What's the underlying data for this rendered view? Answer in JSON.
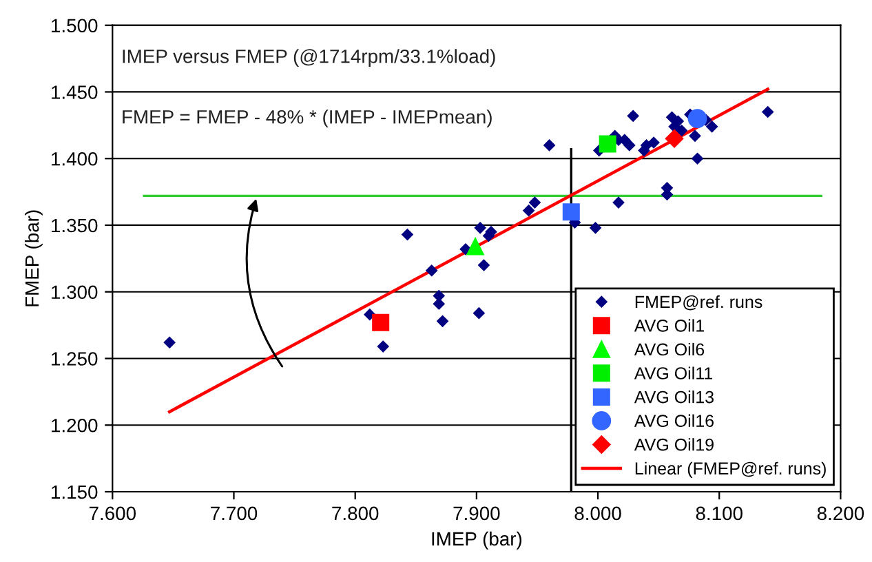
{
  "chart_data": {
    "type": "scatter",
    "xlabel": "IMEP (bar)",
    "ylabel": "FMEP (bar)",
    "annotations": [
      "IMEP versus FMEP (@1714rpm/33.1%load)",
      "FMEP = FMEP - 48% * (IMEP - IMEPmean)"
    ],
    "xlim": [
      7.6,
      8.2
    ],
    "xticks": [
      {
        "value": 7.6,
        "label": "7.600"
      },
      {
        "value": 7.7,
        "label": "7.700"
      },
      {
        "value": 7.8,
        "label": "7.800"
      },
      {
        "value": 7.9,
        "label": "7.900"
      },
      {
        "value": 8.0,
        "label": "8.000"
      },
      {
        "value": 8.1,
        "label": "8.100"
      },
      {
        "value": 8.2,
        "label": "8.200"
      }
    ],
    "ylim": [
      1.15,
      1.5
    ],
    "yticks": [
      {
        "value": 1.15,
        "label": "1.150"
      },
      {
        "value": 1.2,
        "label": "1.200"
      },
      {
        "value": 1.25,
        "label": "1.250"
      },
      {
        "value": 1.3,
        "label": "1.300"
      },
      {
        "value": 1.35,
        "label": "1.350"
      },
      {
        "value": 1.4,
        "label": "1.400"
      },
      {
        "value": 1.45,
        "label": "1.450"
      },
      {
        "value": 1.5,
        "label": "1.500"
      }
    ],
    "grid": "y",
    "legend": "bottom right",
    "series": [
      {
        "type": "line",
        "color": "#33cc33",
        "marker": "none",
        "x": [
          7.626,
          8.184
        ],
        "values": [
          1.372,
          1.372
        ]
      },
      {
        "type": "line",
        "color": "#000000",
        "marker": "none",
        "x": [
          7.978,
          7.978
        ],
        "values": [
          1.15,
          1.407
        ]
      },
      {
        "name": "FMEP@ref. runs",
        "marker": "diamond",
        "color": "#000080",
        "x": [
          7.647,
          7.812,
          7.823,
          7.843,
          7.863,
          7.869,
          7.869,
          7.872,
          7.891,
          7.903,
          7.906,
          7.902,
          7.91,
          7.912,
          7.943,
          7.948,
          7.96,
          7.981,
          7.998,
          8.001,
          8.014,
          8.017,
          8.022,
          8.026,
          8.029,
          8.017,
          8.038,
          8.04,
          8.046,
          8.057,
          8.057,
          8.061,
          8.063,
          8.066,
          8.069,
          8.076,
          8.08,
          8.082,
          8.089,
          8.094,
          8.14
        ],
        "values": [
          1.262,
          1.283,
          1.259,
          1.343,
          1.316,
          1.297,
          1.291,
          1.278,
          1.332,
          1.348,
          1.32,
          1.284,
          1.342,
          1.345,
          1.361,
          1.367,
          1.41,
          1.352,
          1.348,
          1.406,
          1.417,
          1.414,
          1.414,
          1.41,
          1.432,
          1.367,
          1.406,
          1.41,
          1.412,
          1.378,
          1.373,
          1.431,
          1.424,
          1.428,
          1.421,
          1.433,
          1.417,
          1.4,
          1.429,
          1.424,
          1.435
        ]
      },
      {
        "name": "AVG Oil1",
        "marker": "square",
        "color": "#ff0000",
        "x": [
          7.821
        ],
        "values": [
          1.277
        ]
      },
      {
        "name": "AVG Oil6",
        "marker": "triangle",
        "color": "#00ff00",
        "x": [
          7.899
        ],
        "values": [
          1.334
        ]
      },
      {
        "name": "AVG Oil11",
        "marker": "square",
        "color": "#00ee00",
        "x": [
          8.008
        ],
        "values": [
          1.411
        ]
      },
      {
        "name": "AVG Oil13",
        "marker": "square",
        "color": "#3366ff",
        "x": [
          7.978
        ],
        "values": [
          1.36
        ]
      },
      {
        "name": "AVG Oil16",
        "marker": "circle",
        "color": "#3366ff",
        "x": [
          8.082
        ],
        "values": [
          1.43
        ]
      },
      {
        "name": "AVG Oil19",
        "marker": "diamond",
        "color": "#ff0000",
        "x": [
          8.063
        ],
        "values": [
          1.415
        ]
      },
      {
        "name": "Linear (FMEP@ref. runs)",
        "type": "line",
        "marker": "none",
        "color": "#ff0000",
        "x": [
          7.647,
          8.14
        ],
        "values": [
          1.21,
          1.452
        ]
      }
    ]
  }
}
